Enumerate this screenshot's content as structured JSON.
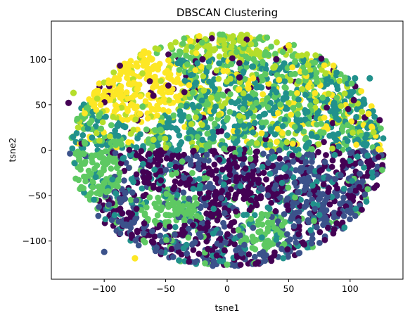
{
  "chart_data": {
    "type": "scatter",
    "title": "DBSCAN Clustering",
    "xlabel": "tsne1",
    "ylabel": "tsne2",
    "xlim": [
      -143,
      143
    ],
    "ylim": [
      -142,
      142
    ],
    "xticks": [
      -100,
      -50,
      0,
      50,
      100
    ],
    "yticks": [
      -100,
      -50,
      0,
      50,
      100
    ],
    "xtick_labels": [
      "−100",
      "−50",
      "0",
      "50",
      "100"
    ],
    "ytick_labels": [
      "−100",
      "−50",
      "0",
      "50",
      "100"
    ],
    "grid": false,
    "legend": "none",
    "colormap": "viridis",
    "palette": [
      "#440154",
      "#3b528b",
      "#21918c",
      "#5ec962",
      "#b5de2b",
      "#fde725"
    ],
    "cloud": {
      "center": [
        0,
        0
      ],
      "radius_x": 128,
      "radius_y": 128
    },
    "clusters": [
      {
        "region": "lower-half",
        "color": "#3b528b",
        "note_value": "y < 0"
      },
      {
        "region": "lower-center",
        "color": "#440154",
        "center": [
          -20,
          -30
        ]
      },
      {
        "region": "upper-half",
        "color": "#21918c",
        "note_value": "y > 0"
      },
      {
        "region": "upper-left",
        "color": "#fde725",
        "center": [
          -75,
          70
        ]
      },
      {
        "region": "top-band",
        "color": "#b5de2b",
        "center": [
          0,
          110
        ]
      },
      {
        "region": "left",
        "color": "#5ec962",
        "center": [
          -110,
          -25
        ]
      },
      {
        "region": "bottom-left",
        "color": "#5ec962",
        "center": [
          -45,
          -65
        ]
      },
      {
        "region": "bottom-right",
        "color": "#5ec962",
        "center": [
          30,
          -90
        ]
      }
    ],
    "points": [
      [
        -129,
        52,
        "#440154"
      ],
      [
        -125,
        63,
        "#b5de2b"
      ],
      [
        -75,
        -119,
        "#fde725"
      ],
      [
        -100,
        -112,
        "#3b528b"
      ],
      [
        0,
        -126,
        "#5ec962"
      ],
      [
        104,
        79,
        "#21918c"
      ],
      [
        116,
        79,
        "#21918c"
      ],
      [
        112,
        36,
        "#440154"
      ],
      [
        103,
        55,
        "#440154"
      ],
      [
        124,
        33,
        "#440154"
      ],
      [
        40,
        100,
        "#440154"
      ],
      [
        10,
        80,
        "#440154"
      ],
      [
        -60,
        60,
        "#440154"
      ],
      [
        -20,
        100,
        "#440154"
      ],
      [
        115,
        40,
        "#fde725"
      ],
      [
        -30,
        120,
        "#fde725"
      ],
      [
        50,
        115,
        "#fde725"
      ],
      [
        -90,
        45,
        "#fde725"
      ]
    ]
  }
}
